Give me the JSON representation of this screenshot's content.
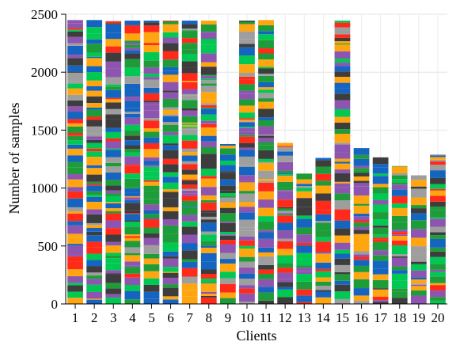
{
  "chart_data": {
    "type": "bar",
    "stacked": true,
    "title": "",
    "xlabel": "Clients",
    "ylabel": "Number of samples",
    "ylim": [
      0,
      2500
    ],
    "yticks": [
      0,
      500,
      1000,
      1500,
      2000,
      2500
    ],
    "grid": true,
    "legend": "none",
    "categories": [
      "1",
      "2",
      "3",
      "4",
      "5",
      "6",
      "7",
      "8",
      "9",
      "10",
      "11",
      "12",
      "13",
      "14",
      "15",
      "16",
      "17",
      "18",
      "19",
      "20"
    ],
    "totals": [
      2450,
      2450,
      2440,
      2445,
      2445,
      2445,
      2445,
      2445,
      1380,
      2445,
      2450,
      1390,
      1125,
      1260,
      2445,
      1345,
      1265,
      1190,
      1110,
      1290
    ],
    "segment_palette": [
      "#1f9c3a",
      "#ff2a1a",
      "#ffa510",
      "#1565c0",
      "#9e9e9e",
      "#3d3d3d",
      "#8e55b0",
      "#00c853"
    ]
  }
}
